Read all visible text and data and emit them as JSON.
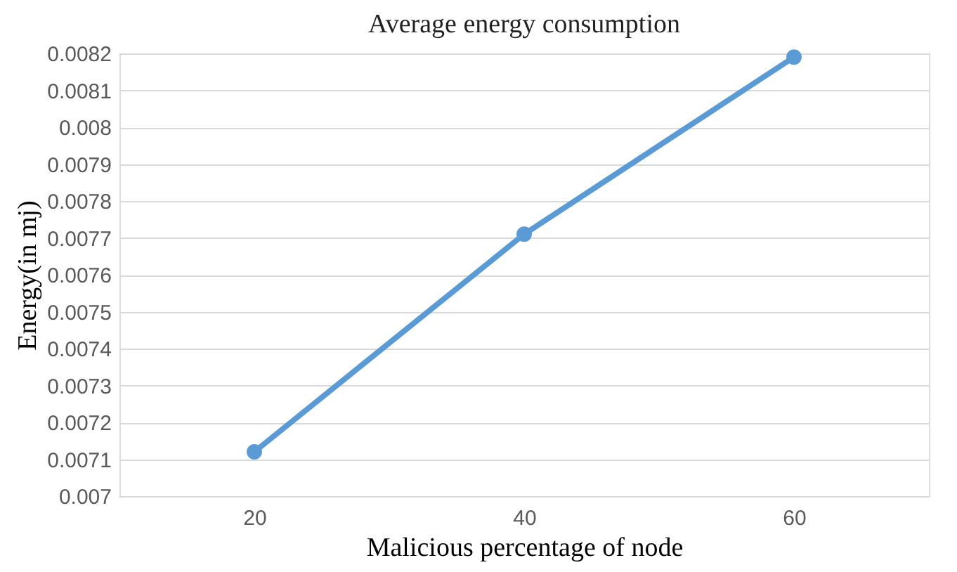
{
  "chart_data": {
    "type": "line",
    "title": "Average energy consumption",
    "xlabel": "Malicious percentage of node",
    "ylabel": "Energy(in mj)",
    "categories": [
      "20",
      "40",
      "60"
    ],
    "series": [
      {
        "color": "#5b9bd5",
        "values": [
          0.00712,
          0.00771,
          0.00819
        ]
      }
    ],
    "ylim": [
      0.007,
      0.0082
    ],
    "yticks": [
      0.007,
      0.0071,
      0.0072,
      0.0073,
      0.0074,
      0.0075,
      0.0076,
      0.0077,
      0.0078,
      0.0079,
      0.008,
      0.0081,
      0.0082
    ],
    "grid": "y",
    "marker": "circle",
    "line_style": "solid"
  }
}
